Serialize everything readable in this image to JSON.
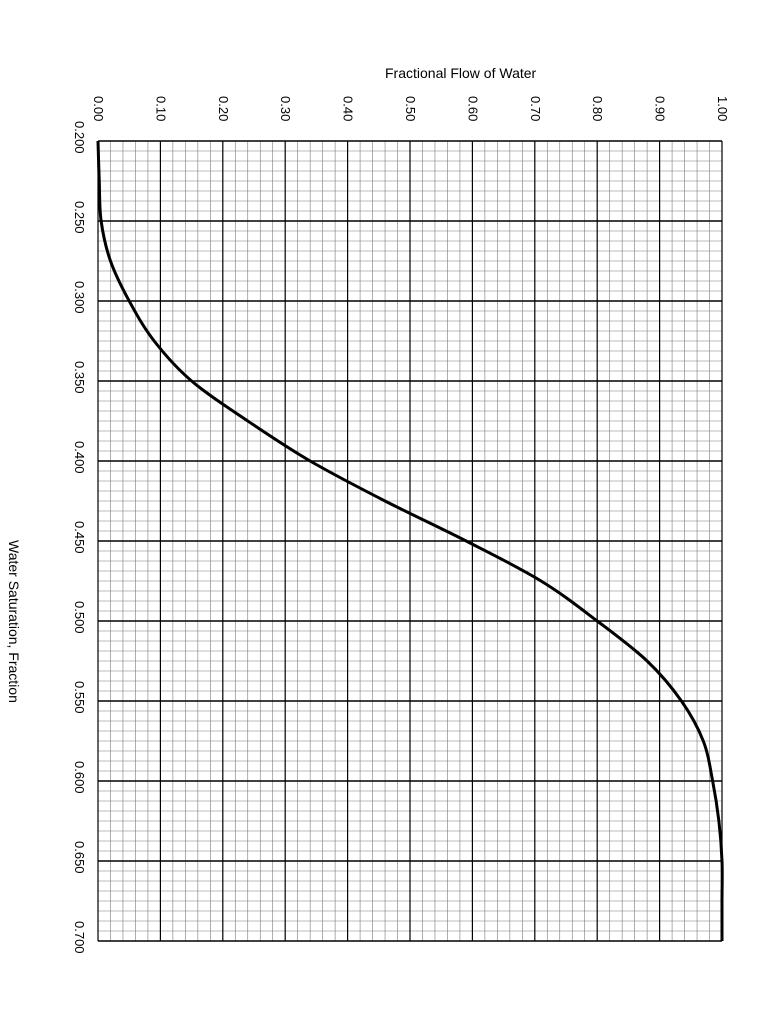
{
  "chart_data": {
    "type": "line",
    "title": "Fractional Flow of Water",
    "xlabel": "Fractional Flow of Water",
    "ylabel": "Water Saturation, Fraction",
    "x_axis": {
      "range": [
        0.0,
        1.0
      ],
      "ticks": [
        "0.00",
        "0.10",
        "0.20",
        "0.30",
        "0.40",
        "0.50",
        "0.60",
        "0.70",
        "0.80",
        "0.90",
        "1.00"
      ]
    },
    "y_axis": {
      "range": [
        0.2,
        0.7
      ],
      "ticks": [
        "0.200",
        "0.250",
        "0.300",
        "0.350",
        "0.400",
        "0.450",
        "0.500",
        "0.550",
        "0.600",
        "0.650",
        "0.700"
      ]
    },
    "grid": true,
    "orientation": "rotated 90 degrees clockwise",
    "series": [
      {
        "color": "#000000",
        "points": [
          {
            "sw": 0.2,
            "fw": 0.0
          },
          {
            "sw": 0.225,
            "fw": 0.002
          },
          {
            "sw": 0.25,
            "fw": 0.005
          },
          {
            "sw": 0.275,
            "fw": 0.02
          },
          {
            "sw": 0.3,
            "fw": 0.05
          },
          {
            "sw": 0.325,
            "fw": 0.09
          },
          {
            "sw": 0.35,
            "fw": 0.15
          },
          {
            "sw": 0.375,
            "fw": 0.24
          },
          {
            "sw": 0.4,
            "fw": 0.34
          },
          {
            "sw": 0.425,
            "fw": 0.46
          },
          {
            "sw": 0.45,
            "fw": 0.59
          },
          {
            "sw": 0.475,
            "fw": 0.71
          },
          {
            "sw": 0.5,
            "fw": 0.8
          },
          {
            "sw": 0.525,
            "fw": 0.88
          },
          {
            "sw": 0.55,
            "fw": 0.935
          },
          {
            "sw": 0.575,
            "fw": 0.97
          },
          {
            "sw": 0.6,
            "fw": 0.985
          },
          {
            "sw": 0.625,
            "fw": 0.995
          },
          {
            "sw": 0.65,
            "fw": 1.0
          },
          {
            "sw": 0.675,
            "fw": 1.0
          },
          {
            "sw": 0.7,
            "fw": 1.0
          }
        ]
      }
    ]
  }
}
